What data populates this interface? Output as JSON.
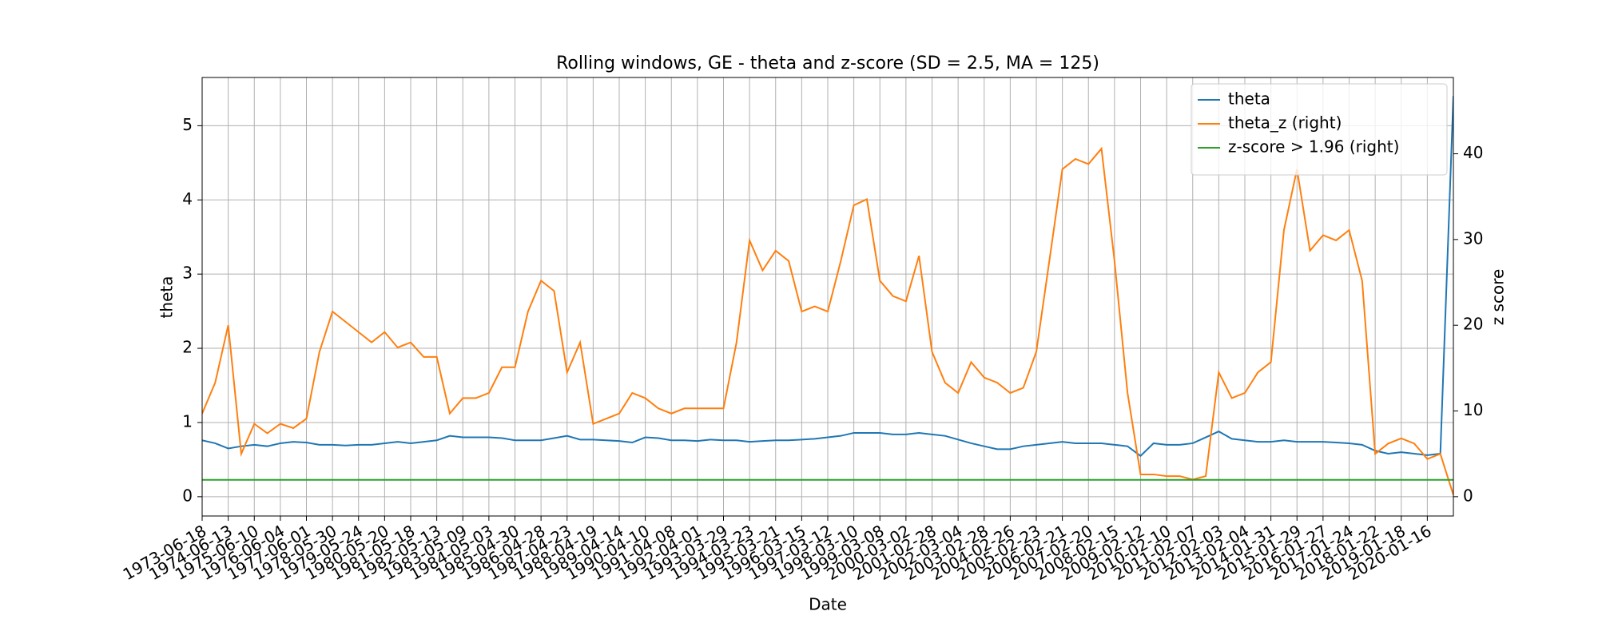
{
  "chart_data": {
    "type": "line",
    "title": "Rolling windows, GE - theta and z-score (SD = 2.5, MA = 125)",
    "xlabel": "Date",
    "ylabel": "theta",
    "y2label": "z score",
    "grid": true,
    "legend": "upper right",
    "xlim": [
      0,
      12000
    ],
    "xticks": [
      {
        "value": 0,
        "label": "1973-06-18"
      },
      {
        "value": 250,
        "label": "1974-06-13"
      },
      {
        "value": 500,
        "label": "1975-06-10"
      },
      {
        "value": 750,
        "label": "1976-06-04"
      },
      {
        "value": 1000,
        "label": "1977-06-01"
      },
      {
        "value": 1250,
        "label": "1978-05-30"
      },
      {
        "value": 1500,
        "label": "1979-05-24"
      },
      {
        "value": 1750,
        "label": "1980-05-20"
      },
      {
        "value": 2000,
        "label": "1981-05-18"
      },
      {
        "value": 2250,
        "label": "1982-05-13"
      },
      {
        "value": 2500,
        "label": "1983-05-09"
      },
      {
        "value": 2750,
        "label": "1984-05-03"
      },
      {
        "value": 3000,
        "label": "1985-04-30"
      },
      {
        "value": 3250,
        "label": "1986-04-28"
      },
      {
        "value": 3500,
        "label": "1987-04-23"
      },
      {
        "value": 3750,
        "label": "1988-04-19"
      },
      {
        "value": 4000,
        "label": "1989-04-14"
      },
      {
        "value": 4250,
        "label": "1990-04-10"
      },
      {
        "value": 4500,
        "label": "1991-04-08"
      },
      {
        "value": 4750,
        "label": "1992-04-01"
      },
      {
        "value": 5000,
        "label": "1993-03-29"
      },
      {
        "value": 5250,
        "label": "1994-03-23"
      },
      {
        "value": 5500,
        "label": "1995-03-21"
      },
      {
        "value": 5750,
        "label": "1996-03-15"
      },
      {
        "value": 6000,
        "label": "1997-03-12"
      },
      {
        "value": 6250,
        "label": "1998-03-10"
      },
      {
        "value": 6500,
        "label": "1999-03-08"
      },
      {
        "value": 6750,
        "label": "2000-03-02"
      },
      {
        "value": 7000,
        "label": "2001-02-28"
      },
      {
        "value": 7250,
        "label": "2002-03-04"
      },
      {
        "value": 7500,
        "label": "2003-02-28"
      },
      {
        "value": 7750,
        "label": "2004-02-26"
      },
      {
        "value": 8000,
        "label": "2005-02-23"
      },
      {
        "value": 8250,
        "label": "2006-02-21"
      },
      {
        "value": 8500,
        "label": "2007-02-20"
      },
      {
        "value": 8750,
        "label": "2008-02-15"
      },
      {
        "value": 9000,
        "label": "2009-02-12"
      },
      {
        "value": 9250,
        "label": "2010-02-10"
      },
      {
        "value": 9500,
        "label": "2011-02-07"
      },
      {
        "value": 9750,
        "label": "2012-02-03"
      },
      {
        "value": 10000,
        "label": "2013-02-04"
      },
      {
        "value": 10250,
        "label": "2014-01-31"
      },
      {
        "value": 10500,
        "label": "2015-01-29"
      },
      {
        "value": 10750,
        "label": "2016-01-27"
      },
      {
        "value": 11000,
        "label": "2017-01-24"
      },
      {
        "value": 11250,
        "label": "2018-01-22"
      },
      {
        "value": 11500,
        "label": "2019-01-18"
      },
      {
        "value": 11750,
        "label": "2020-01-16"
      }
    ],
    "ylim": [
      -0.26,
      5.65
    ],
    "yticks": [
      0,
      1,
      2,
      3,
      4,
      5
    ],
    "y2lim": [
      -2.25,
      48.9
    ],
    "y2ticks": [
      0,
      10,
      20,
      30,
      40
    ],
    "series": [
      {
        "name": "theta",
        "color": "#1f77b4",
        "x": [
          0,
          125,
          250,
          375,
          500,
          625,
          750,
          875,
          1000,
          1125,
          1250,
          1375,
          1500,
          1625,
          1750,
          1875,
          2000,
          2125,
          2250,
          2375,
          2500,
          2625,
          2750,
          2875,
          3000,
          3125,
          3250,
          3375,
          3500,
          3625,
          3750,
          3875,
          4000,
          4125,
          4250,
          4375,
          4500,
          4625,
          4750,
          4875,
          5000,
          5125,
          5250,
          5375,
          5500,
          5625,
          5750,
          5875,
          6000,
          6125,
          6250,
          6375,
          6500,
          6625,
          6750,
          6875,
          7000,
          7125,
          7250,
          7375,
          7500,
          7625,
          7750,
          7875,
          8000,
          8125,
          8250,
          8375,
          8500,
          8625,
          8750,
          8875,
          9000,
          9125,
          9250,
          9375,
          9500,
          9625,
          9750,
          9875,
          10000,
          10125,
          10250,
          10375,
          10500,
          10625,
          10750,
          10875,
          11000,
          11125,
          11250,
          11375,
          11500,
          11625,
          11750,
          11875,
          12000
        ],
        "values": [
          0.76,
          0.72,
          0.65,
          0.68,
          0.7,
          0.68,
          0.72,
          0.74,
          0.73,
          0.7,
          0.7,
          0.69,
          0.7,
          0.7,
          0.72,
          0.74,
          0.72,
          0.74,
          0.76,
          0.82,
          0.8,
          0.8,
          0.8,
          0.79,
          0.76,
          0.76,
          0.76,
          0.79,
          0.82,
          0.77,
          0.77,
          0.76,
          0.75,
          0.73,
          0.8,
          0.79,
          0.76,
          0.76,
          0.75,
          0.77,
          0.76,
          0.76,
          0.74,
          0.75,
          0.76,
          0.76,
          0.77,
          0.78,
          0.8,
          0.82,
          0.86,
          0.86,
          0.86,
          0.84,
          0.84,
          0.86,
          0.84,
          0.82,
          0.77,
          0.72,
          0.68,
          0.64,
          0.64,
          0.68,
          0.7,
          0.72,
          0.74,
          0.72,
          0.72,
          0.72,
          0.7,
          0.68,
          0.55,
          0.72,
          0.7,
          0.7,
          0.72,
          0.8,
          0.88,
          0.78,
          0.76,
          0.74,
          0.74,
          0.76,
          0.74,
          0.74,
          0.74,
          0.73,
          0.72,
          0.7,
          0.62,
          0.58,
          0.6,
          0.58,
          0.56,
          0.58,
          5.4
        ]
      },
      {
        "name": "theta_z (right)",
        "color": "#ff7f0e",
        "axis": "y2",
        "x": [
          0,
          125,
          250,
          375,
          500,
          625,
          750,
          875,
          1000,
          1125,
          1250,
          1375,
          1500,
          1625,
          1750,
          1875,
          2000,
          2125,
          2250,
          2375,
          2500,
          2625,
          2750,
          2875,
          3000,
          3125,
          3250,
          3375,
          3500,
          3625,
          3750,
          3875,
          4000,
          4125,
          4250,
          4375,
          4500,
          4625,
          4750,
          4875,
          5000,
          5125,
          5250,
          5375,
          5500,
          5625,
          5750,
          5875,
          6000,
          6125,
          6250,
          6375,
          6500,
          6625,
          6750,
          6875,
          7000,
          7125,
          7250,
          7375,
          7500,
          7625,
          7750,
          7875,
          8000,
          8125,
          8250,
          8375,
          8500,
          8625,
          8750,
          8875,
          9000,
          9125,
          9250,
          9375,
          9500,
          9625,
          9750,
          9875,
          10000,
          10125,
          10250,
          10375,
          10500,
          10625,
          10750,
          10875,
          11000,
          11125,
          11250,
          11375,
          11500,
          11625,
          11750,
          11875,
          12000
        ],
        "values": [
          9.7,
          13.3,
          20,
          5,
          8.5,
          7.4,
          8.5,
          8,
          9.1,
          16.9,
          21.6,
          20.4,
          19.2,
          18,
          19.2,
          17.4,
          18,
          16.3,
          16.3,
          9.7,
          11.5,
          11.5,
          12.1,
          15.1,
          15.1,
          21.6,
          25.2,
          24,
          14.5,
          18,
          8.5,
          9.1,
          9.7,
          12.1,
          11.5,
          10.3,
          9.7,
          10.3,
          10.3,
          10.3,
          10.3,
          18,
          29.9,
          26.4,
          28.7,
          27.5,
          21.6,
          22.2,
          21.6,
          27.5,
          34,
          34.7,
          25.2,
          23.4,
          22.8,
          28.1,
          16.9,
          13.3,
          12.1,
          15.7,
          13.9,
          13.3,
          12.1,
          12.7,
          16.9,
          27.5,
          38.2,
          39.4,
          38.8,
          40.6,
          27.5,
          12.1,
          2.6,
          2.6,
          2.4,
          2.4,
          2,
          2.4,
          14.5,
          11.5,
          12.1,
          14.5,
          15.7,
          31.1,
          38.2,
          28.7,
          30.5,
          29.9,
          31.1,
          25.2,
          5,
          6.2,
          6.8,
          6.2,
          4.4,
          5,
          0.2
        ]
      },
      {
        "name": "z-score > 1.96 (right)",
        "color": "#2ca02c",
        "axis": "y2",
        "x": [
          0,
          12000
        ],
        "values": [
          1.96,
          1.96
        ]
      }
    ]
  }
}
